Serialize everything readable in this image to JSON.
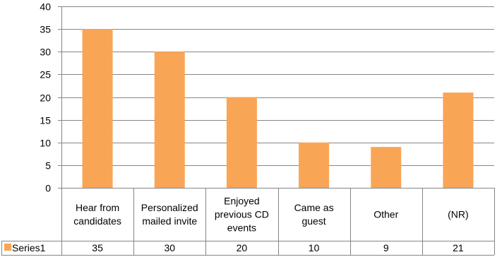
{
  "chart_data": {
    "type": "bar",
    "categories": [
      [
        "Hear from",
        "candidates"
      ],
      [
        "Personalized",
        "mailed invite"
      ],
      [
        "Enjoyed",
        "previous CD",
        "events"
      ],
      [
        "Came as",
        "guest"
      ],
      [
        "Other"
      ],
      [
        "(NR)"
      ]
    ],
    "series": [
      {
        "name": "Series1",
        "values": [
          35,
          30,
          20,
          10,
          9,
          21
        ],
        "color": "#F9A556"
      }
    ],
    "ylim": [
      0,
      40
    ],
    "yticks": [
      0,
      5,
      10,
      15,
      20,
      25,
      30,
      35,
      40
    ],
    "grid": true,
    "legend": "data-table-left",
    "data_table": true,
    "grid_color": "#868686"
  }
}
